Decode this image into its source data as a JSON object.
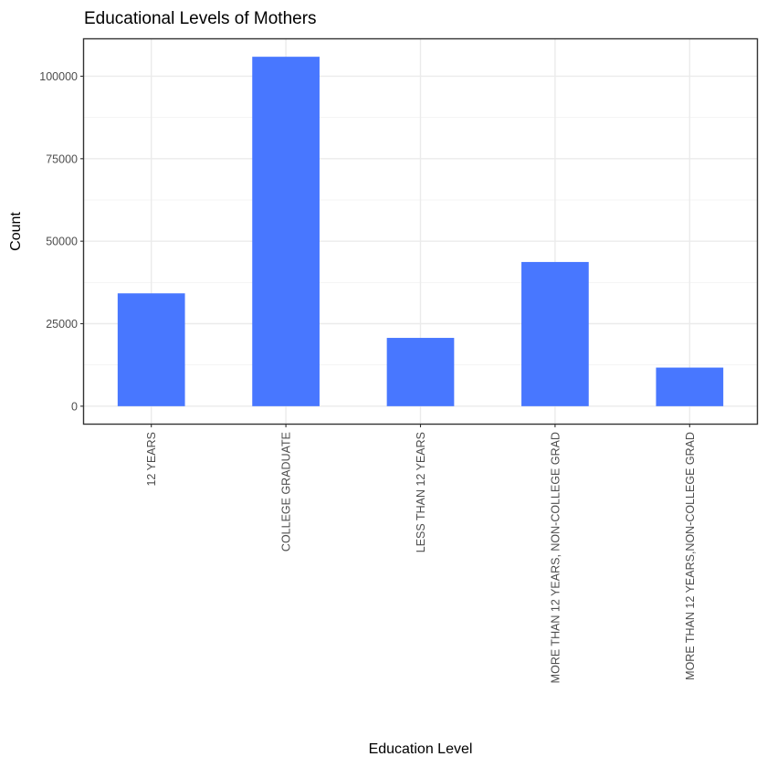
{
  "chart_data": {
    "type": "bar",
    "title": "Educational Levels of Mothers",
    "xlabel": "Education Level",
    "ylabel": "Count",
    "categories": [
      "12 YEARS",
      "COLLEGE GRADUATE",
      "LESS THAN 12 YEARS",
      "MORE THAN 12 YEARS, NON-COLLEGE GRAD",
      "MORE THAN 12 YEARS,NON-COLLEGE GRAD"
    ],
    "values": [
      34200,
      105900,
      20700,
      43700,
      11700
    ],
    "ylim": [
      -5300,
      111200
    ],
    "yticks": [
      0,
      25000,
      50000,
      75000,
      100000
    ],
    "ytick_labels": [
      "0",
      "25000",
      "50000",
      "75000",
      "100000"
    ],
    "bar_color": "#4877ff",
    "grid": true,
    "legend": "none"
  }
}
